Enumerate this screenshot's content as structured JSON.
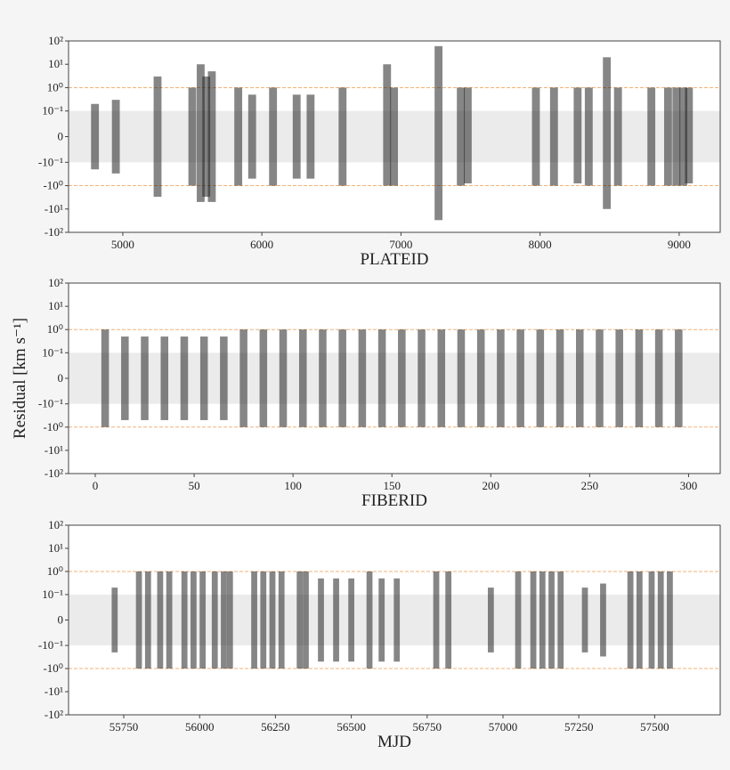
{
  "chart_data": [
    {
      "type": "strip",
      "xlabel": "PLATEID",
      "xlim": [
        4610,
        9295
      ],
      "xticks": [
        5000,
        6000,
        7000,
        8000,
        9000
      ],
      "ylim": [
        -100,
        100
      ],
      "yscale": "symlog",
      "linthresh": 0.1,
      "yticks": [
        {
          "value": 100,
          "label": "10²"
        },
        {
          "value": 10,
          "label": "10¹"
        },
        {
          "value": 1,
          "label": "10⁰"
        },
        {
          "value": 0.1,
          "label": "10⁻¹"
        },
        0,
        {
          "value": -0.1,
          "label": "-10⁻¹"
        },
        {
          "value": -1,
          "label": "-10⁰"
        },
        {
          "value": -10,
          "label": "-10¹"
        },
        {
          "value": -100,
          "label": "-10²"
        }
      ],
      "band": [
        -0.1,
        0.1
      ],
      "band_color": "#ebebeb",
      "hlines": [
        -1,
        1
      ],
      "line_color": "#f0b27a",
      "color": "#222222",
      "x": [
        4800,
        4950,
        5250,
        5500,
        5560,
        5600,
        5640,
        5830,
        5930,
        6080,
        6250,
        6350,
        6580,
        6900,
        6950,
        7270,
        7430,
        7480,
        7970,
        8100,
        8270,
        8350,
        8480,
        8560,
        8800,
        8920,
        8980,
        9030,
        9070
      ],
      "low": [
        -0.2,
        -0.3,
        -3,
        -1,
        -5,
        -3,
        -5,
        -1,
        -0.5,
        -1,
        -0.5,
        -0.5,
        -1,
        -1,
        -1,
        -30,
        -1,
        -0.8,
        -1,
        -1,
        -0.8,
        -1,
        -10,
        -1,
        -1,
        -1,
        -1,
        -1,
        -0.8
      ],
      "high": [
        0.2,
        0.3,
        3,
        1,
        10,
        3,
        5,
        1,
        0.5,
        1,
        0.5,
        0.5,
        1,
        10,
        1,
        60,
        1,
        1,
        1,
        1,
        1,
        1,
        20,
        1,
        1,
        1,
        1,
        1,
        1
      ]
    },
    {
      "type": "strip",
      "xlabel": "FIBERID",
      "ylabel": "Residual [km s⁻¹]",
      "xlim": [
        -13.5,
        316
      ],
      "xticks": [
        0,
        50,
        100,
        150,
        200,
        250,
        300
      ],
      "ylim": [
        -100,
        100
      ],
      "yscale": "symlog",
      "linthresh": 0.1,
      "yticks": [
        {
          "value": 100,
          "label": "10²"
        },
        {
          "value": 10,
          "label": "10¹"
        },
        {
          "value": 1,
          "label": "10⁰"
        },
        {
          "value": 0.1,
          "label": "10⁻¹"
        },
        0,
        {
          "value": -0.1,
          "label": "-10⁻¹"
        },
        {
          "value": -1,
          "label": "-10⁰"
        },
        {
          "value": -10,
          "label": "-10¹"
        },
        {
          "value": -100,
          "label": "-10²"
        }
      ],
      "band": [
        -0.1,
        0.1
      ],
      "band_color": "#ebebeb",
      "hlines": [
        -1,
        1
      ],
      "line_color": "#f0b27a",
      "color": "#222222",
      "x": [
        5,
        15,
        25,
        35,
        45,
        55,
        65,
        75,
        85,
        95,
        105,
        115,
        125,
        135,
        145,
        155,
        165,
        175,
        185,
        195,
        205,
        215,
        225,
        235,
        245,
        255,
        265,
        275,
        285,
        295
      ],
      "low": [
        -1,
        -0.5,
        -0.5,
        -0.5,
        -0.5,
        -0.5,
        -0.5,
        -1,
        -1,
        -1,
        -1,
        -1,
        -1,
        -1,
        -1,
        -1,
        -1,
        -1,
        -1,
        -1,
        -1,
        -1,
        -1,
        -1,
        -1,
        -1,
        -1,
        -1,
        -1,
        -1
      ],
      "high": [
        1,
        0.5,
        0.5,
        0.5,
        0.5,
        0.5,
        0.5,
        1,
        1,
        1,
        1,
        1,
        1,
        1,
        1,
        1,
        1,
        1,
        1,
        1,
        1,
        1,
        1,
        1,
        1,
        1,
        1,
        1,
        1,
        1
      ]
    },
    {
      "type": "strip",
      "xlabel": "MJD",
      "xlim": [
        55568,
        57716
      ],
      "xticks": [
        55750,
        56000,
        56250,
        56500,
        56750,
        57000,
        57250,
        57500
      ],
      "ylim": [
        -100,
        100
      ],
      "yscale": "symlog",
      "linthresh": 0.1,
      "yticks": [
        {
          "value": 100,
          "label": "10²"
        },
        {
          "value": 10,
          "label": "10¹"
        },
        {
          "value": 1,
          "label": "10⁰"
        },
        {
          "value": 0.1,
          "label": "10⁻¹"
        },
        0,
        {
          "value": -0.1,
          "label": "-10⁻¹"
        },
        {
          "value": -1,
          "label": "-10⁰"
        },
        {
          "value": -10,
          "label": "-10¹"
        },
        {
          "value": -100,
          "label": "-10²"
        }
      ],
      "band": [
        -0.1,
        0.1
      ],
      "band_color": "#ebebeb",
      "hlines": [
        -1,
        1
      ],
      "line_color": "#f0b27a",
      "color": "#222222",
      "x": [
        55720,
        55800,
        55830,
        55870,
        55900,
        55950,
        55980,
        56010,
        56050,
        56080,
        56100,
        56180,
        56210,
        56240,
        56270,
        56330,
        56350,
        56400,
        56450,
        56500,
        56560,
        56600,
        56650,
        56780,
        56820,
        56960,
        57050,
        57100,
        57130,
        57160,
        57190,
        57270,
        57330,
        57420,
        57450,
        57490,
        57520,
        57550
      ],
      "low": [
        -0.2,
        -1,
        -1,
        -1,
        -1,
        -1,
        -1,
        -1,
        -1,
        -1,
        -1,
        -1,
        -1,
        -1,
        -1,
        -1,
        -1,
        -0.5,
        -0.5,
        -0.5,
        -1,
        -0.5,
        -0.5,
        -1,
        -1,
        -0.2,
        -1,
        -1,
        -1,
        -1,
        -1,
        -0.2,
        -0.3,
        -1,
        -1,
        -1,
        -1,
        -1
      ],
      "high": [
        0.2,
        1,
        1,
        1,
        1,
        1,
        1,
        1,
        1,
        1,
        1,
        1,
        1,
        1,
        1,
        1,
        1,
        0.5,
        0.5,
        0.5,
        1,
        0.5,
        0.5,
        1,
        1,
        0.2,
        1,
        1,
        1,
        1,
        1,
        0.2,
        0.3,
        1,
        1,
        1,
        1,
        1
      ]
    }
  ]
}
